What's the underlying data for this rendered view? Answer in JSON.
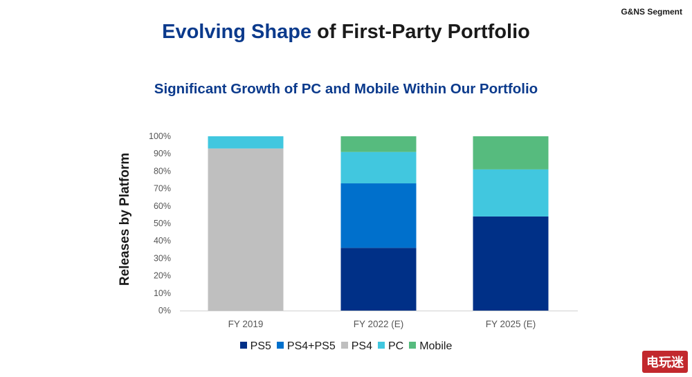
{
  "header": {
    "segment_label": "G&NS Segment",
    "title_accent": "Evolving Shape",
    "title_rest": " of First-Party Portfolio",
    "subtitle": "Significant Growth of PC and Mobile Within Our Portfolio"
  },
  "watermark": {
    "text": "电玩迷"
  },
  "colors": {
    "PS5": "#003087",
    "PS4+PS5": "#0070cc",
    "PS4": "#bfbfbf",
    "PC": "#41c7df",
    "Mobile": "#56bb7e"
  },
  "chart_data": {
    "type": "bar",
    "stacked": true,
    "title": "Significant Growth of PC and Mobile Within Our Portfolio",
    "xlabel": "",
    "ylabel": "Releases by Platform",
    "ylim": [
      0,
      100
    ],
    "yticks": [
      "0%",
      "10%",
      "20%",
      "30%",
      "40%",
      "50%",
      "60%",
      "70%",
      "80%",
      "90%",
      "100%"
    ],
    "categories": [
      "FY 2019",
      "FY 2022 (E)",
      "FY 2025 (E)"
    ],
    "series": [
      {
        "name": "PS5",
        "values": [
          0,
          36,
          54
        ]
      },
      {
        "name": "PS4+PS5",
        "values": [
          0,
          37,
          0
        ]
      },
      {
        "name": "PS4",
        "values": [
          93,
          0,
          0
        ]
      },
      {
        "name": "PC",
        "values": [
          7,
          18,
          27
        ]
      },
      {
        "name": "Mobile",
        "values": [
          0,
          9,
          19
        ]
      }
    ],
    "legend_position": "bottom"
  }
}
